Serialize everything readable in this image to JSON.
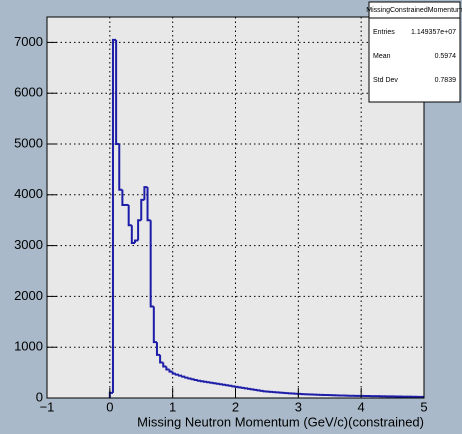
{
  "chart_data": {
    "type": "histogram",
    "x_label": "Missing Neutron Momentum (GeV/c)(constrained)",
    "color": "#1c1ca8",
    "grid": true,
    "xlim": [
      -1,
      5
    ],
    "xticks": [
      {
        "value": -1,
        "label": "−1"
      },
      0,
      1,
      2,
      3,
      4,
      5
    ],
    "ylim": [
      0,
      7500
    ],
    "yticks": [
      0,
      1000,
      2000,
      3000,
      4000,
      5000,
      6000,
      7000
    ],
    "bins": [
      0,
      0.05,
      0.1,
      0.15,
      0.2,
      0.25,
      0.3,
      0.35,
      0.4,
      0.45,
      0.5,
      0.55,
      0.6,
      0.65,
      0.7,
      0.75,
      0.8,
      0.85,
      0.9,
      0.95,
      1,
      1.05,
      1.1,
      1.15,
      1.2,
      1.25,
      1.3,
      1.35,
      1.4,
      1.45,
      1.5,
      1.55,
      1.6,
      1.65,
      1.7,
      1.75,
      1.8,
      1.85,
      1.9,
      1.95,
      2,
      2.05,
      2.1,
      2.15,
      2.2,
      2.25,
      2.3,
      2.35,
      2.4,
      2.45,
      2.5,
      2.55,
      2.6,
      2.65,
      2.7,
      2.75,
      2.8,
      2.85,
      2.9,
      2.95,
      3,
      3.05,
      3.1,
      3.15,
      3.2,
      3.25,
      3.3,
      3.35,
      3.4,
      3.45,
      3.5,
      3.55,
      3.6,
      3.65,
      3.7,
      3.75,
      3.8,
      3.85,
      3.9,
      3.95,
      4,
      4.05,
      4.1,
      4.15,
      4.2,
      4.25,
      4.3,
      4.35,
      4.4,
      4.45,
      4.5,
      4.55,
      4.6,
      4.65,
      4.7,
      4.75,
      4.8,
      4.85,
      4.9,
      4.95,
      5
    ],
    "values": [
      100,
      7050,
      5000,
      4100,
      3800,
      3800,
      3400,
      3050,
      3100,
      3500,
      3900,
      4150,
      3500,
      1800,
      1100,
      850,
      700,
      620,
      560,
      520,
      480,
      460,
      440,
      420,
      400,
      385,
      370,
      355,
      340,
      330,
      320,
      310,
      300,
      290,
      280,
      270,
      260,
      250,
      240,
      230,
      220,
      210,
      200,
      190,
      180,
      170,
      160,
      150,
      140,
      130,
      125,
      120,
      115,
      110,
      105,
      100,
      96,
      92,
      88,
      84,
      80,
      77,
      74,
      71,
      68,
      66,
      64,
      62,
      60,
      58,
      56,
      54,
      52,
      50,
      48,
      46,
      45,
      44,
      43,
      42,
      41,
      40,
      39,
      38,
      37,
      36,
      35,
      34,
      33,
      32,
      31,
      30,
      29,
      28,
      27,
      26,
      25,
      24,
      23,
      22
    ],
    "stats": {
      "title": "MissingConstrainedMomentum",
      "rows": [
        {
          "label": "Entries",
          "value": "1.149357e+07"
        },
        {
          "label": "Mean",
          "value": "0.5974"
        },
        {
          "label": "Std Dev",
          "value": "0.7839"
        }
      ]
    }
  }
}
